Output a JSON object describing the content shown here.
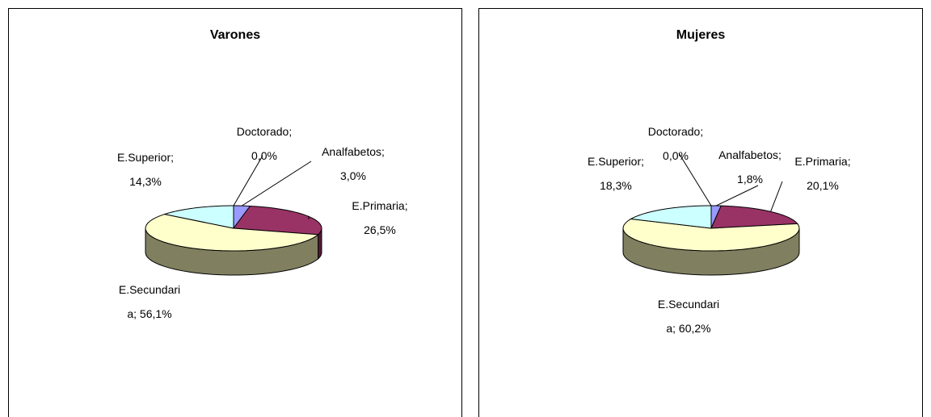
{
  "chart_data": [
    {
      "type": "pie3d",
      "title": "Varones",
      "values": [
        3.0,
        26.5,
        56.1,
        14.3,
        0.0
      ],
      "value_labels": [
        "Analfabetos; 3,0%",
        "E.Primaria; 26,5%",
        "E.Secundaria; 56,1%",
        "E.Superior; 14,3%",
        "Doctorado; 0,0%"
      ],
      "colors": [
        "#9999ff",
        "#993366",
        "#ffffcc",
        "#ccffff",
        "#9999ff"
      ]
    },
    {
      "type": "pie3d",
      "title": "Mujeres",
      "values": [
        1.8,
        20.1,
        60.2,
        18.3,
        0.0
      ],
      "value_labels": [
        "Analfabetos; 1,8%",
        "E.Primaria; 20,1%",
        "E.Secundaria; 60,2%",
        "E.Superior; 18,3%",
        "Doctorado; 0,0%"
      ],
      "colors": [
        "#9999ff",
        "#993366",
        "#ffffcc",
        "#ccffff",
        "#9999ff"
      ]
    }
  ]
}
